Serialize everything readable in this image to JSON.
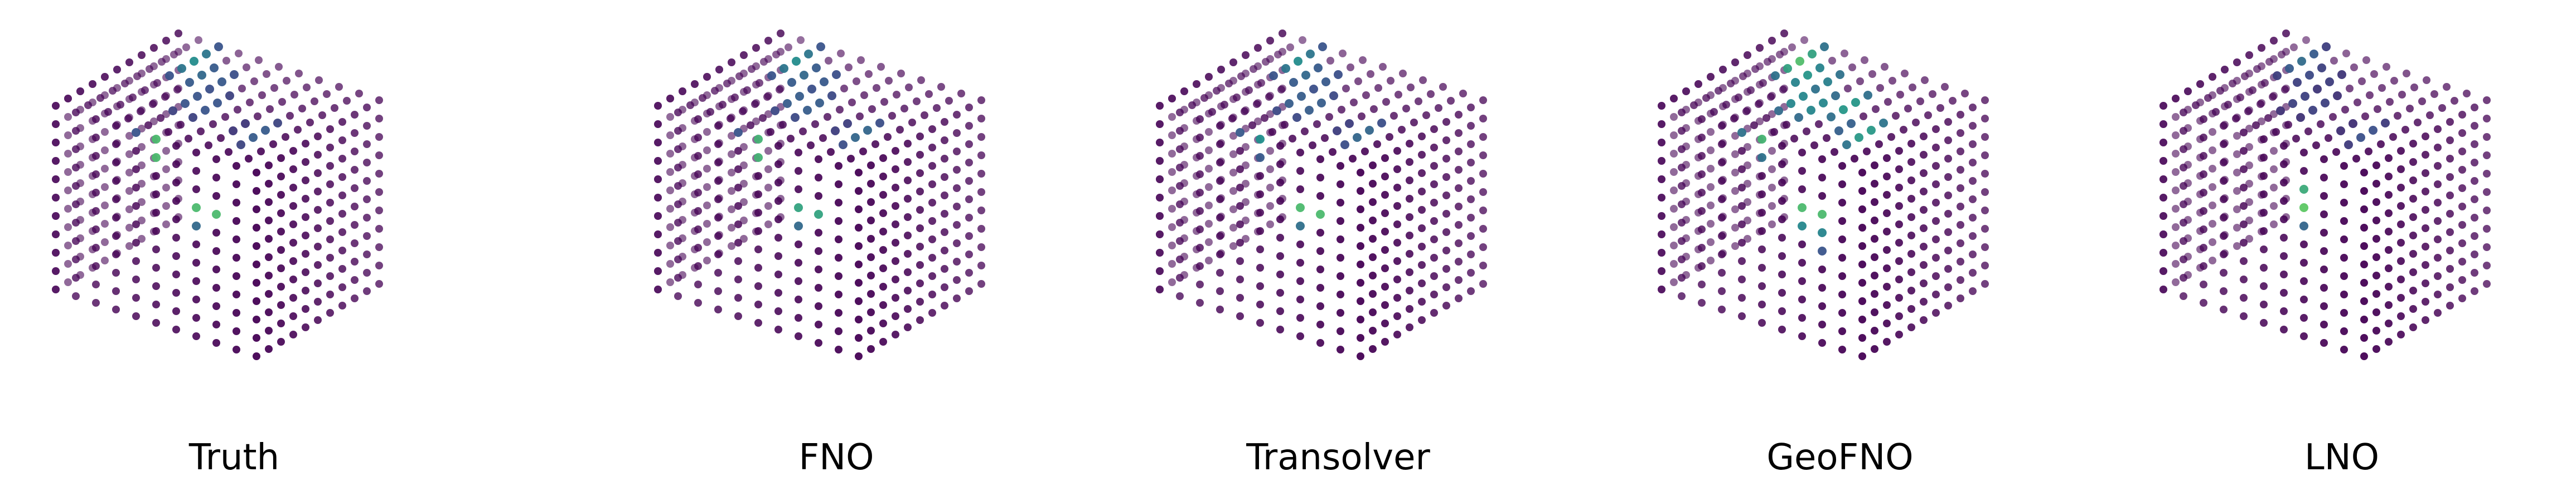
{
  "panels": [
    {
      "label": "Truth",
      "hotspots": [
        {
          "face": "top",
          "u": 0.78,
          "v": 0.68,
          "level": 0.55
        },
        {
          "face": "top",
          "u": 0.66,
          "v": 0.72,
          "level": 0.45
        },
        {
          "face": "top",
          "u": 0.55,
          "v": 0.82,
          "level": 0.4
        },
        {
          "face": "top",
          "u": 0.22,
          "v": 0.86,
          "level": 0.35
        },
        {
          "face": "front",
          "u": 0.52,
          "v": 0.98,
          "level": 0.55
        },
        {
          "face": "front",
          "u": 0.5,
          "v": 0.95,
          "level": 1.0
        },
        {
          "face": "front",
          "u": 0.25,
          "v": 0.7,
          "level": 1.0
        },
        {
          "face": "front",
          "u": 0.3,
          "v": 0.66,
          "level": 0.55
        }
      ]
    },
    {
      "label": "FNO",
      "hotspots": [
        {
          "face": "top",
          "u": 0.78,
          "v": 0.68,
          "level": 0.55
        },
        {
          "face": "top",
          "u": 0.66,
          "v": 0.72,
          "level": 0.45
        },
        {
          "face": "top",
          "u": 0.55,
          "v": 0.82,
          "level": 0.45
        },
        {
          "face": "top",
          "u": 0.22,
          "v": 0.86,
          "level": 0.4
        },
        {
          "face": "front",
          "u": 0.52,
          "v": 0.98,
          "level": 0.55
        },
        {
          "face": "front",
          "u": 0.5,
          "v": 0.95,
          "level": 0.95
        },
        {
          "face": "front",
          "u": 0.25,
          "v": 0.7,
          "level": 0.85
        },
        {
          "face": "front",
          "u": 0.3,
          "v": 0.66,
          "level": 0.55
        }
      ]
    },
    {
      "label": "Transolver",
      "hotspots": [
        {
          "face": "top",
          "u": 0.78,
          "v": 0.68,
          "level": 0.55
        },
        {
          "face": "top",
          "u": 0.66,
          "v": 0.72,
          "level": 0.45
        },
        {
          "face": "top",
          "u": 0.55,
          "v": 0.82,
          "level": 0.45
        },
        {
          "face": "top",
          "u": 0.22,
          "v": 0.86,
          "level": 0.4
        },
        {
          "face": "front",
          "u": 0.52,
          "v": 0.98,
          "level": 0.6
        },
        {
          "face": "front",
          "u": 0.25,
          "v": 0.7,
          "level": 1.0
        },
        {
          "face": "front",
          "u": 0.3,
          "v": 0.66,
          "level": 0.6
        }
      ]
    },
    {
      "label": "GeoFNO",
      "hotspots": [
        {
          "face": "top",
          "u": 0.78,
          "v": 0.68,
          "level": 0.8
        },
        {
          "face": "top",
          "u": 0.66,
          "v": 0.72,
          "level": 0.7
        },
        {
          "face": "top",
          "u": 0.55,
          "v": 0.82,
          "level": 0.7
        },
        {
          "face": "top",
          "u": 0.22,
          "v": 0.86,
          "level": 0.65
        },
        {
          "face": "top",
          "u": 0.4,
          "v": 0.78,
          "level": 0.6
        },
        {
          "face": "front",
          "u": 0.52,
          "v": 0.98,
          "level": 0.8
        },
        {
          "face": "front",
          "u": 0.25,
          "v": 0.7,
          "level": 1.0
        },
        {
          "face": "front",
          "u": 0.3,
          "v": 0.66,
          "level": 0.75
        },
        {
          "face": "front",
          "u": 0.22,
          "v": 0.58,
          "level": 0.55
        }
      ]
    },
    {
      "label": "LNO",
      "hotspots": [
        {
          "face": "top",
          "u": 0.78,
          "v": 0.68,
          "level": 0.4
        },
        {
          "face": "top",
          "u": 0.66,
          "v": 0.72,
          "level": 0.3
        },
        {
          "face": "top",
          "u": 0.55,
          "v": 0.82,
          "level": 0.3
        },
        {
          "face": "top",
          "u": 0.22,
          "v": 0.86,
          "level": 0.3
        },
        {
          "face": "front",
          "u": 0.3,
          "v": 0.74,
          "level": 1.0
        },
        {
          "face": "front",
          "u": 0.28,
          "v": 0.66,
          "level": 0.55
        }
      ]
    }
  ]
}
